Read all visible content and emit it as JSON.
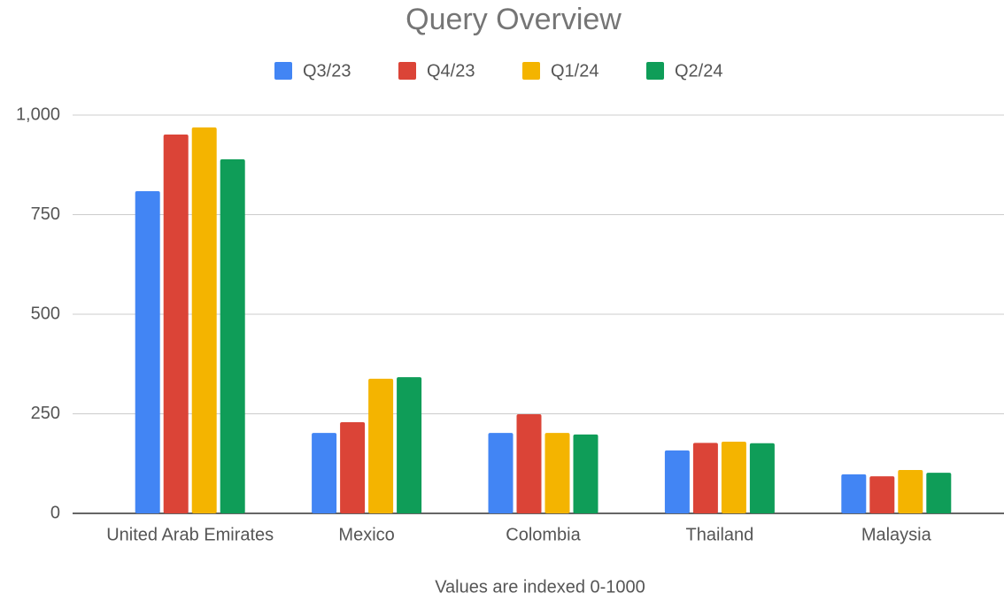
{
  "chart_data": {
    "type": "bar",
    "title": "Query Overview",
    "x_label": "Values are indexed 0-1000",
    "categories": [
      "United Arab Emirates",
      "Mexico",
      "Colombia",
      "Thailand",
      "Malaysia"
    ],
    "series": [
      {
        "name": "Q3/23",
        "color": "#4285f4",
        "values": [
          809,
          202,
          202,
          158,
          98
        ]
      },
      {
        "name": "Q4/23",
        "color": "#db4437",
        "values": [
          951,
          229,
          249,
          177,
          93
        ]
      },
      {
        "name": "Q1/24",
        "color": "#f4b400",
        "values": [
          969,
          338,
          202,
          180,
          109
        ]
      },
      {
        "name": "Q2/24",
        "color": "#0f9d58",
        "values": [
          889,
          342,
          198,
          176,
          102
        ]
      }
    ],
    "ylim": [
      0,
      1000
    ],
    "yticks": [
      0,
      250,
      500,
      750,
      {
        "value": 1000,
        "label": "1,000"
      }
    ],
    "grid": true,
    "legend": "top"
  }
}
